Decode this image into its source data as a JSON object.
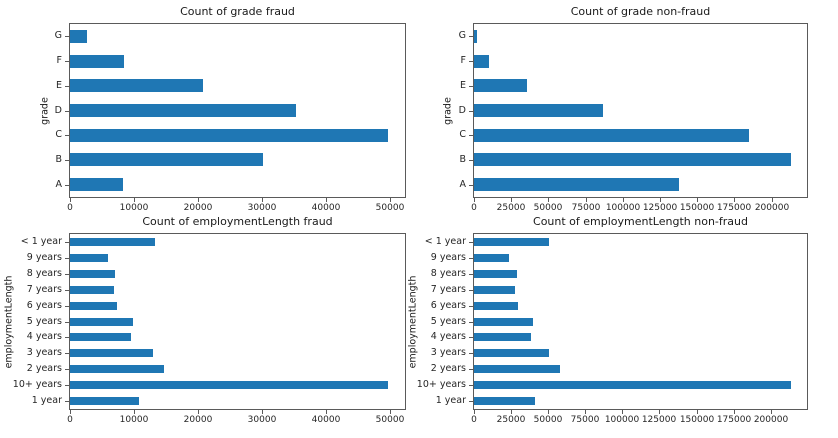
{
  "figure": {
    "background": "#ffffff",
    "bar_color": "#1f77b4",
    "text_color": "#262626",
    "spine_color": "#5a5a5a"
  },
  "chart_data": [
    {
      "type": "bar",
      "orientation": "horizontal",
      "title": "Count of grade fraud",
      "xlabel": "",
      "ylabel": "grade",
      "category_order": "top-to-bottom",
      "categories": [
        "G",
        "F",
        "E",
        "D",
        "C",
        "B",
        "A"
      ],
      "values": [
        2600,
        8400,
        20700,
        35300,
        49700,
        30200,
        8200
      ],
      "xticks": [
        0,
        10000,
        20000,
        30000,
        40000,
        50000
      ],
      "xlim": [
        0,
        52300
      ],
      "grid": false,
      "legend": "none",
      "bar_color": "#1f77b4"
    },
    {
      "type": "bar",
      "orientation": "horizontal",
      "title": "Count of grade non-fraud",
      "xlabel": "",
      "ylabel": "grade",
      "category_order": "top-to-bottom",
      "categories": [
        "G",
        "F",
        "E",
        "D",
        "C",
        "B",
        "A"
      ],
      "values": [
        2200,
        10000,
        35500,
        87000,
        185000,
        213000,
        138000
      ],
      "xticks": [
        0,
        25000,
        50000,
        75000,
        100000,
        125000,
        150000,
        175000,
        200000
      ],
      "xlim": [
        0,
        223800
      ],
      "grid": false,
      "legend": "none",
      "bar_color": "#1f77b4"
    },
    {
      "type": "bar",
      "orientation": "horizontal",
      "title": "Count of employmentLength fraud",
      "xlabel": "",
      "ylabel": "employmentLength",
      "category_order": "top-to-bottom",
      "categories": [
        "< 1 year",
        "9 years",
        "8 years",
        "7 years",
        "6 years",
        "5 years",
        "4 years",
        "3 years",
        "2 years",
        "10+ years",
        "1 year"
      ],
      "values": [
        13200,
        6000,
        7100,
        6900,
        7300,
        9800,
        9600,
        13000,
        14700,
        49700,
        10700
      ],
      "xticks": [
        0,
        10000,
        20000,
        30000,
        40000,
        50000
      ],
      "xlim": [
        0,
        52300
      ],
      "grid": false,
      "legend": "none",
      "bar_color": "#1f77b4"
    },
    {
      "type": "bar",
      "orientation": "horizontal",
      "title": "Count of employmentLength non-fraud",
      "xlabel": "",
      "ylabel": "employmentLength",
      "category_order": "top-to-bottom",
      "categories": [
        "< 1 year",
        "9 years",
        "8 years",
        "7 years",
        "6 years",
        "5 years",
        "4 years",
        "3 years",
        "2 years",
        "10+ years",
        "1 year"
      ],
      "values": [
        50600,
        23900,
        28700,
        27900,
        29400,
        39900,
        38300,
        50600,
        57700,
        213800,
        41000
      ],
      "xticks": [
        0,
        25000,
        50000,
        75000,
        100000,
        125000,
        150000,
        175000,
        200000
      ],
      "xlim": [
        0,
        224400
      ],
      "grid": false,
      "legend": "none",
      "bar_color": "#1f77b4"
    }
  ]
}
